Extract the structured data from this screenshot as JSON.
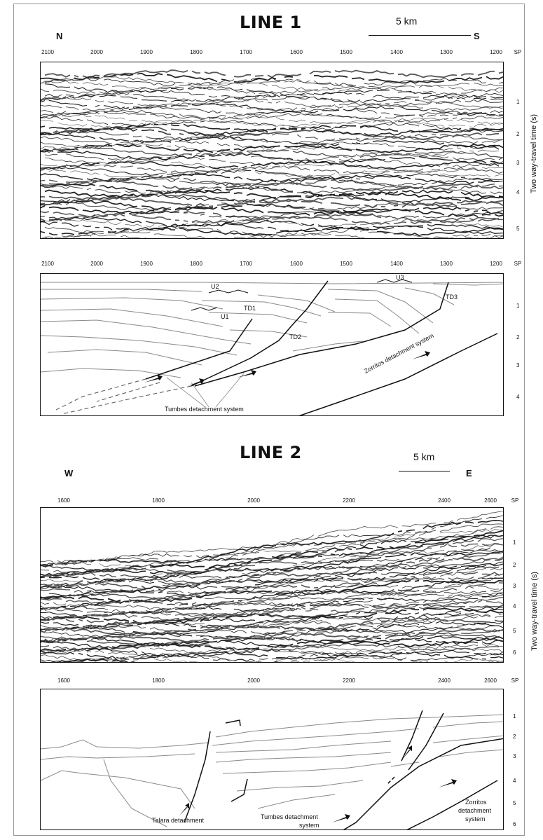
{
  "line1": {
    "title": "LINE 1",
    "dir_left": "N",
    "dir_right": "S",
    "scale": "5 km",
    "sp_ticks": [
      "2100",
      "2000",
      "1900",
      "1800",
      "1700",
      "1600",
      "1500",
      "1400",
      "1300",
      "1200"
    ],
    "sp_label": "SP",
    "seismic_time_ticks": [
      "1",
      "2",
      "3",
      "4",
      "5"
    ],
    "interp_time_ticks": [
      "1",
      "2",
      "3",
      "4"
    ],
    "axis_title": "Two way-travel time (s)",
    "labels": {
      "u1": "U1",
      "u2": "U2",
      "u3": "U3",
      "td1": "TD1",
      "td2": "TD2",
      "td3": "TD3",
      "tumbes": "Tumbes detachment system",
      "zorritos": "Zorritos detachment system"
    }
  },
  "line2": {
    "title": "LINE 2",
    "dir_left": "W",
    "dir_right": "E",
    "scale": "5 km",
    "sp_ticks": [
      "1600",
      "1800",
      "2000",
      "2200",
      "2400",
      "2600"
    ],
    "sp_label": "SP",
    "time_ticks": [
      "1",
      "2",
      "3",
      "4",
      "5",
      "6"
    ],
    "axis_title": "Two way-travel time (s)",
    "labels": {
      "talara": "Talara detachment",
      "tumbes_1": "Tumbes detachment",
      "tumbes_2": "system",
      "zorritos_1": "Zorritos",
      "zorritos_2": "detachment",
      "zorritos_3": "system"
    }
  },
  "colors": {
    "line": "#111111",
    "horizon": "#8a8a8a",
    "seismic_bg": "#f2f2f2"
  }
}
